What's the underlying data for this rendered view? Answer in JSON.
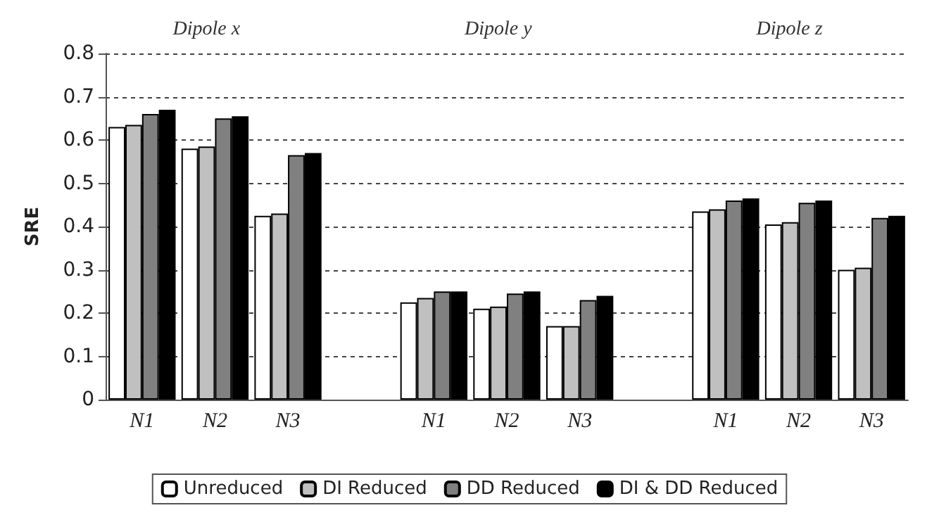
{
  "chart_data": {
    "type": "bar",
    "ylabel": "SRE",
    "categories": [
      "N1",
      "N2",
      "N3",
      null,
      "N1",
      "N2",
      "N3",
      null,
      "N1",
      "N2",
      "N3"
    ],
    "series": [
      {
        "name": "Unreduced",
        "color": "#ffffff",
        "values": [
          0.63,
          0.58,
          0.425,
          null,
          0.225,
          0.21,
          0.17,
          null,
          0.435,
          0.405,
          0.3
        ]
      },
      {
        "name": "DI Reduced",
        "color": "#c0c0c0",
        "values": [
          0.635,
          0.585,
          0.43,
          null,
          0.235,
          0.215,
          0.17,
          null,
          0.44,
          0.41,
          0.305
        ]
      },
      {
        "name": "DD Reduced",
        "color": "#808080",
        "values": [
          0.66,
          0.65,
          0.565,
          null,
          0.25,
          0.245,
          0.23,
          null,
          0.46,
          0.455,
          0.42
        ]
      },
      {
        "name": "DI & DD Reduced",
        "color": "#000000",
        "values": [
          0.67,
          0.655,
          0.57,
          null,
          0.25,
          0.25,
          0.24,
          null,
          0.465,
          0.46,
          0.425
        ]
      }
    ],
    "annotations": [
      "Dipole x",
      "Dipole y",
      "Dipole z"
    ],
    "ylim": [
      0,
      0.8
    ],
    "yticks": [
      0,
      0.1,
      0.2,
      0.3,
      0.4,
      0.5,
      0.6,
      0.7,
      0.8
    ],
    "grid": "y",
    "legend": "bottom"
  }
}
